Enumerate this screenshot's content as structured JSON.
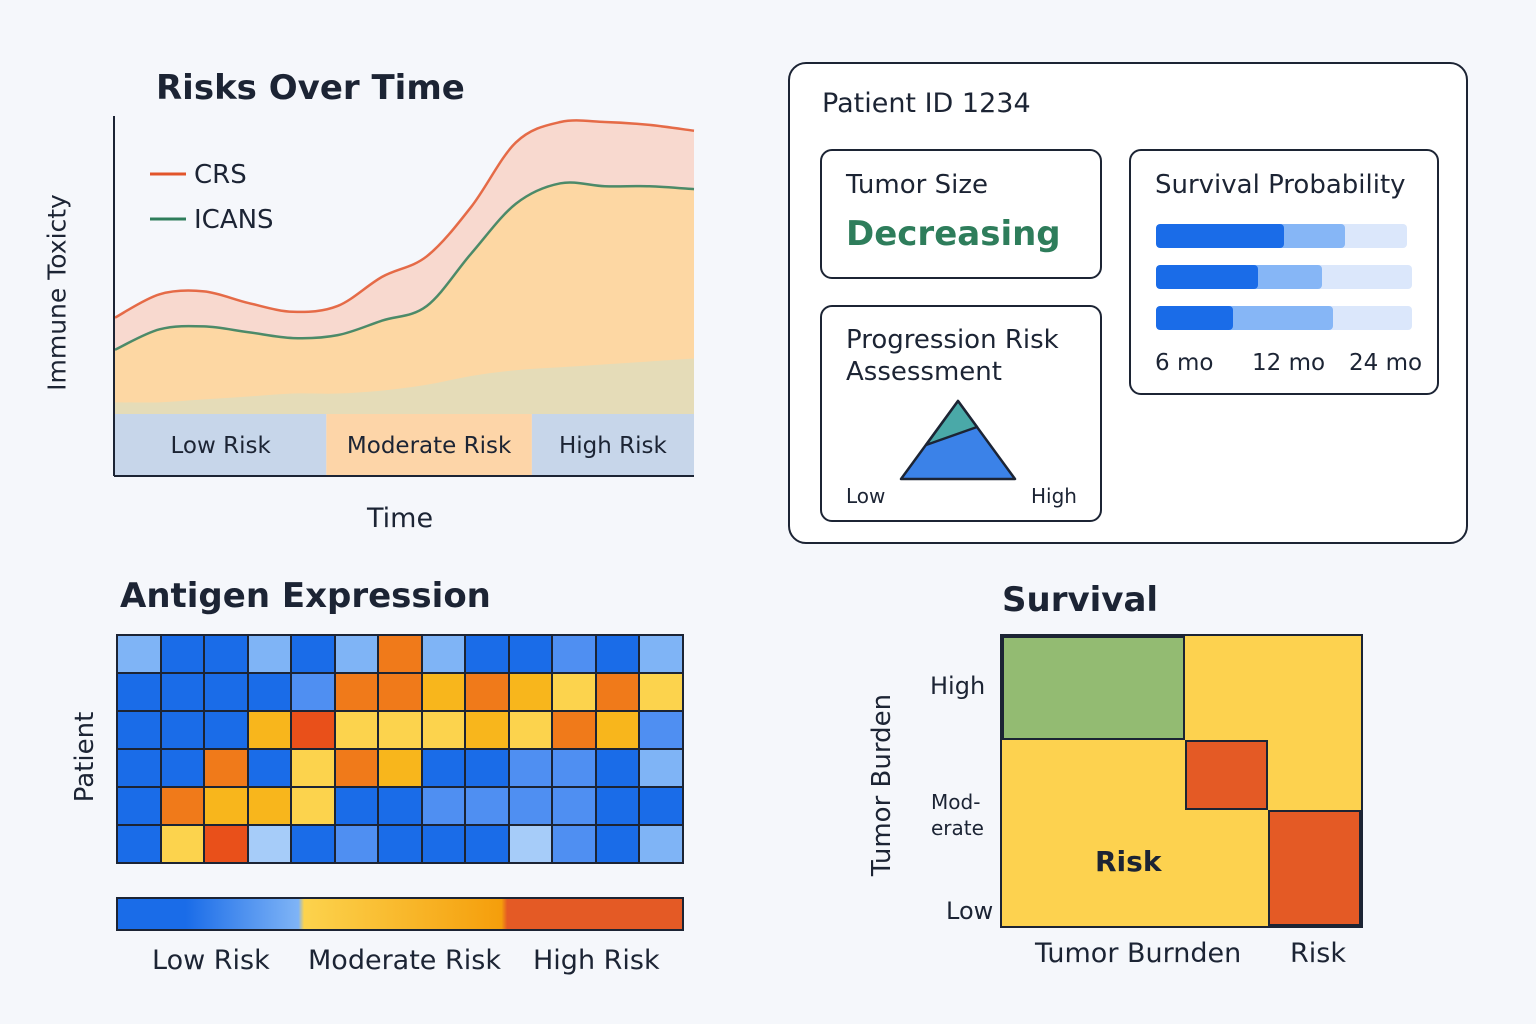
{
  "chart_data": [
    {
      "type": "area",
      "title": "Risks Over Time",
      "xlabel": "Time",
      "ylabel": "Immune Toxicty",
      "legend": "top-left",
      "series": [
        {
          "name": "CRS",
          "color": "#e2552b",
          "fill": "#f8d9cf",
          "values": [
            0.33,
            0.41,
            0.42,
            0.38,
            0.35,
            0.37,
            0.47,
            0.54,
            0.71,
            0.93,
            1.0,
            1.0,
            0.99,
            0.97
          ]
        },
        {
          "name": "ICANS",
          "color": "#2e7d5b",
          "fill": "#fdd7a3",
          "values": [
            0.22,
            0.29,
            0.3,
            0.28,
            0.26,
            0.27,
            0.32,
            0.37,
            0.55,
            0.72,
            0.79,
            0.78,
            0.78,
            0.77
          ]
        },
        {
          "name": "",
          "color": "#d8d3a8",
          "fill": "#e5dcb8",
          "values": [
            0.04,
            0.04,
            0.05,
            0.06,
            0.07,
            0.07,
            0.08,
            0.1,
            0.13,
            0.15,
            0.16,
            0.17,
            0.18,
            0.19
          ]
        }
      ],
      "bands": [
        {
          "label": "Low Risk",
          "from": 0,
          "to": 0.365,
          "color": "#c7d6ea"
        },
        {
          "label": "Moderate Risk",
          "from": 0.365,
          "to": 0.72,
          "color": "#fdd5a8"
        },
        {
          "label": "High Risk",
          "from": 0.72,
          "to": 1.0,
          "color": "#c7d6ea"
        }
      ]
    },
    {
      "type": "heatmap",
      "title": "Antigen Expression",
      "ylabel": "Patient",
      "rows": 6,
      "cols": 13,
      "levels": [
        [
          2,
          0,
          0,
          2,
          0,
          2,
          5,
          2,
          0,
          0,
          1,
          0,
          2
        ],
        [
          0,
          0,
          0,
          0,
          1,
          5,
          5,
          4,
          5,
          4,
          3,
          5,
          3
        ],
        [
          0,
          0,
          0,
          4,
          6,
          3,
          3,
          3,
          4,
          3,
          5,
          4,
          1
        ],
        [
          0,
          0,
          5,
          0,
          3,
          5,
          4,
          0,
          0,
          1,
          1,
          0,
          2
        ],
        [
          0,
          5,
          4,
          4,
          3,
          0,
          0,
          1,
          1,
          1,
          1,
          0,
          0
        ],
        [
          0,
          3,
          6,
          7,
          0,
          1,
          0,
          0,
          0,
          8,
          1,
          0,
          2
        ]
      ],
      "palette": [
        "#1a6ce8",
        "#4f8ff2",
        "#7fb4f6",
        "#fcd34d",
        "#f8b61c",
        "#f07a1a",
        "#e9501a",
        "#a6ccf9",
        "#a6ccf9"
      ],
      "colorbar": {
        "labels": [
          "Low Risk",
          "Moderate Risk",
          "High Risk"
        ]
      }
    },
    {
      "type": "heatmap",
      "title": "Survival",
      "xlabel": "Tumor Burnden",
      "x_extra_label": "Risk",
      "ylabel": "Tumor Burden",
      "y_ticks": [
        "High",
        "Mod-\nerate",
        "Low"
      ],
      "center_label": "Risk",
      "cells": [
        {
          "color": "#93bb72",
          "x0": 0,
          "x1": 0.51,
          "y0": 0,
          "y1": 0.36
        },
        {
          "color": "#e45a25",
          "x0": 0.51,
          "x1": 0.74,
          "y0": 0.36,
          "y1": 0.6
        },
        {
          "color": "#e45a25",
          "x0": 0.74,
          "x1": 1.0,
          "y0": 0.6,
          "y1": 1.0
        }
      ]
    }
  ],
  "patient_card": {
    "id_label": "Patient ID 1234",
    "tumor_size_label": "Tumor Size",
    "tumor_size_value": "Decreasing",
    "progression_title": "Progression Risk Assessment",
    "progression_low": "Low",
    "progression_high": "High",
    "survival_title": "Survival Probability",
    "survival_bars": [
      {
        "dark": 0.5,
        "light": 0.74,
        "track": 0.98
      },
      {
        "dark": 0.4,
        "light": 0.65,
        "track": 1.0
      },
      {
        "dark": 0.3,
        "light": 0.69,
        "track": 1.0
      }
    ],
    "survival_ticks": [
      "6 mo",
      "12 mo",
      "24 mo"
    ],
    "colors": {
      "accent": "#1a6ce8",
      "tumor_value": "#2e7d5b"
    }
  }
}
